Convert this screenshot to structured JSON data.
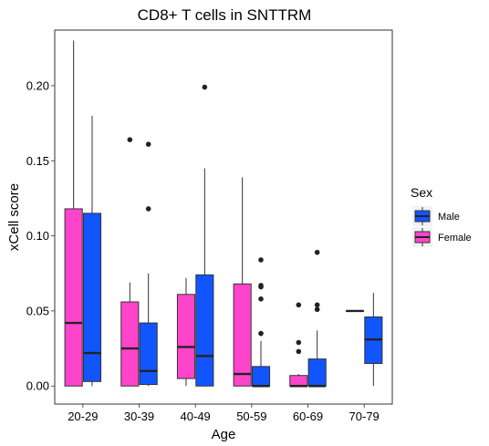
{
  "chart_data": {
    "type": "boxplot",
    "title": "CD8+ T cells in SNTTRM",
    "xlabel": "Age",
    "ylabel": "xCell score",
    "categories": [
      "20-29",
      "30-39",
      "40-49",
      "50-59",
      "60-69",
      "70-79"
    ],
    "ylim": [
      -0.012,
      0.237
    ],
    "yticks": [
      0.0,
      0.05,
      0.1,
      0.15,
      0.2
    ],
    "ytick_labels": [
      "0.00",
      "0.05",
      "0.10",
      "0.15",
      "0.20"
    ],
    "grid": false,
    "legend": {
      "title": "Sex",
      "position": "right"
    },
    "series": [
      {
        "name": "Female",
        "color": "#FF44CC",
        "boxes": [
          {
            "category": "20-29",
            "min": 0.0,
            "q1": 0.0,
            "median": 0.042,
            "q3": 0.118,
            "max": 0.23,
            "outliers": []
          },
          {
            "category": "30-39",
            "min": 0.0,
            "q1": 0.0,
            "median": 0.025,
            "q3": 0.056,
            "max": 0.069,
            "outliers": [
              0.164
            ]
          },
          {
            "category": "40-49",
            "min": 0.0,
            "q1": 0.005,
            "median": 0.026,
            "q3": 0.061,
            "max": 0.072,
            "outliers": []
          },
          {
            "category": "50-59",
            "min": 0.0,
            "q1": 0.0,
            "median": 0.008,
            "q3": 0.068,
            "max": 0.139,
            "outliers": []
          },
          {
            "category": "60-69",
            "min": 0.0,
            "q1": 0.0,
            "median": 0.0,
            "q3": 0.007,
            "max": 0.008,
            "outliers": [
              0.054,
              0.029,
              0.023
            ]
          },
          {
            "category": "70-79",
            "min": 0.05,
            "q1": 0.05,
            "median": 0.05,
            "q3": 0.05,
            "max": 0.05,
            "outliers": []
          }
        ]
      },
      {
        "name": "Male",
        "color": "#1155FF",
        "boxes": [
          {
            "category": "20-29",
            "min": 0.0,
            "q1": 0.003,
            "median": 0.022,
            "q3": 0.115,
            "max": 0.18,
            "outliers": []
          },
          {
            "category": "30-39",
            "min": 0.0,
            "q1": 0.001,
            "median": 0.01,
            "q3": 0.042,
            "max": 0.075,
            "outliers": [
              0.161,
              0.118
            ]
          },
          {
            "category": "40-49",
            "min": 0.0,
            "q1": 0.0,
            "median": 0.02,
            "q3": 0.074,
            "max": 0.145,
            "outliers": [
              0.199
            ]
          },
          {
            "category": "50-59",
            "min": 0.0,
            "q1": 0.0,
            "median": 0.0,
            "q3": 0.013,
            "max": 0.03,
            "outliers": [
              0.084,
              0.067,
              0.066,
              0.058,
              0.035
            ]
          },
          {
            "category": "60-69",
            "min": 0.0,
            "q1": 0.0,
            "median": 0.0,
            "q3": 0.018,
            "max": 0.037,
            "outliers": [
              0.089,
              0.054,
              0.051
            ]
          },
          {
            "category": "70-79",
            "min": 0.0,
            "q1": 0.015,
            "median": 0.031,
            "q3": 0.046,
            "max": 0.062,
            "outliers": []
          }
        ]
      }
    ]
  }
}
